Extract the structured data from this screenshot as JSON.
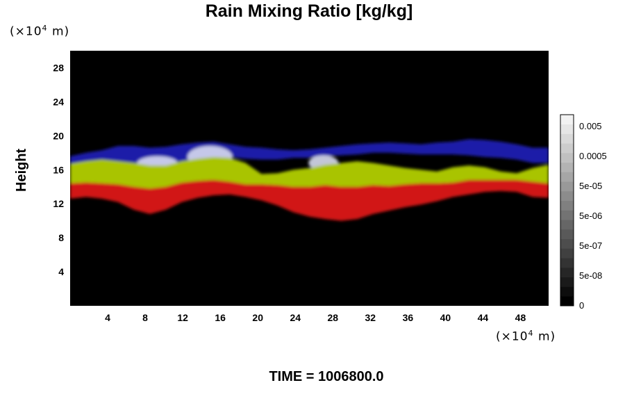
{
  "chart_data": {
    "type": "heatmap",
    "title": "Rain Mixing Ratio [kg/kg]",
    "ylabel": "Height",
    "xunit": "m",
    "yunit": "m",
    "unit_scale_base": "×10",
    "unit_scale_exp": "4",
    "footer": "TIME = 1006800.0",
    "xlim": [
      0,
      51
    ],
    "ylim": [
      0,
      30
    ],
    "x_ticks": [
      4,
      8,
      12,
      16,
      20,
      24,
      28,
      32,
      36,
      40,
      44,
      48
    ],
    "y_ticks": [
      4,
      8,
      12,
      16,
      20,
      24,
      28
    ],
    "colorbar": {
      "type": "log",
      "labels": [
        "0",
        "5e-08",
        "5e-07",
        "5e-06",
        "5e-05",
        "0.0005",
        "0.005"
      ],
      "colors": [
        "#000000",
        "#0d0d0d",
        "#1a1a1a",
        "#262626",
        "#333333",
        "#404040",
        "#4d4d4d",
        "#595959",
        "#666666",
        "#737373",
        "#808080",
        "#8c8c8c",
        "#999999",
        "#a6a6a6",
        "#b3b3b3",
        "#c0c0c0",
        "#cccccc",
        "#d9d9d9",
        "#e6e6e6",
        "#f2f2f2"
      ]
    },
    "layers": [
      {
        "color": "#1b1ba8",
        "top": [
          17.6,
          18.0,
          18.3,
          18.8,
          18.8,
          18.6,
          18.7,
          19.0,
          19.2,
          19.3,
          19.0,
          18.7,
          18.6,
          18.4,
          18.3,
          18.4,
          18.6,
          18.8,
          19.0,
          19.1,
          19.2,
          19.1,
          19.0,
          19.2,
          19.3,
          19.6,
          19.5,
          19.3,
          19.0,
          18.6,
          18.6
        ],
        "bottom": [
          16.5,
          16.8,
          17.0,
          17.0,
          16.8,
          16.6,
          16.6,
          17.0,
          17.3,
          17.5,
          17.5,
          17.3,
          17.2,
          17.2,
          17.4,
          17.4,
          17.6,
          17.7,
          17.8,
          18.0,
          18.0,
          17.9,
          17.8,
          17.8,
          17.8,
          17.7,
          17.5,
          17.4,
          17.2,
          16.8,
          16.8
        ]
      },
      {
        "color": "#d8dcf0",
        "blobs": [
          [
            9.3,
            16.7,
            2.2,
            0.9
          ],
          [
            14.9,
            17.5,
            2.4,
            1.3
          ],
          [
            27.0,
            16.8,
            1.6,
            0.9
          ]
        ]
      },
      {
        "color": "#a9c400",
        "top": [
          16.7,
          17.0,
          17.2,
          17.0,
          16.8,
          16.5,
          16.5,
          17.0,
          17.3,
          17.5,
          17.4,
          16.8,
          15.5,
          15.6,
          16.0,
          16.2,
          16.6,
          16.8,
          17.0,
          16.8,
          16.5,
          16.2,
          16.0,
          15.8,
          16.3,
          16.5,
          16.3,
          15.8,
          15.6,
          16.2,
          16.6
        ],
        "bottom": [
          14.4,
          14.5,
          14.4,
          14.3,
          14.0,
          13.8,
          14.0,
          14.5,
          14.7,
          14.8,
          14.6,
          14.3,
          14.3,
          14.2,
          14.0,
          14.0,
          14.2,
          14.0,
          14.0,
          14.2,
          14.1,
          14.3,
          14.4,
          14.4,
          14.5,
          14.8,
          14.8,
          14.8,
          14.8,
          14.6,
          14.4
        ]
      },
      {
        "color": "#d11414",
        "top": [
          14.4,
          14.5,
          14.4,
          14.3,
          14.0,
          13.8,
          14.0,
          14.5,
          14.7,
          14.8,
          14.6,
          14.3,
          14.3,
          14.2,
          14.0,
          14.0,
          14.2,
          14.0,
          14.0,
          14.2,
          14.1,
          14.3,
          14.4,
          14.4,
          14.5,
          14.8,
          14.8,
          14.8,
          14.8,
          14.6,
          14.4
        ],
        "bottom": [
          12.6,
          12.8,
          12.6,
          12.2,
          11.3,
          10.8,
          11.3,
          12.2,
          12.7,
          13.0,
          13.1,
          12.8,
          12.4,
          11.8,
          11.0,
          10.5,
          10.2,
          10.0,
          10.2,
          10.8,
          11.2,
          11.6,
          11.9,
          12.3,
          12.8,
          13.1,
          13.4,
          13.5,
          13.4,
          12.8,
          12.7
        ]
      }
    ]
  }
}
